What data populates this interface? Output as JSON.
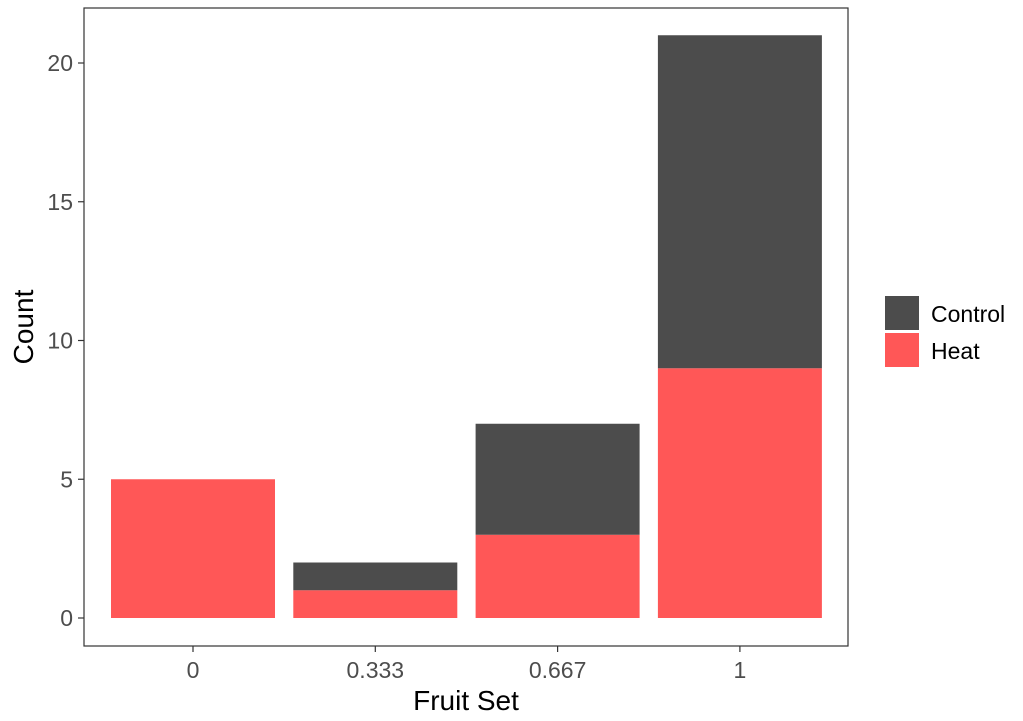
{
  "chart_data": {
    "type": "bar",
    "stacked": true,
    "categories": [
      "0",
      "0.333",
      "0.667",
      "1"
    ],
    "series": [
      {
        "name": "Control",
        "values": [
          0,
          1,
          4,
          12
        ],
        "color": "#333333",
        "opacity": 0.88
      },
      {
        "name": "Heat",
        "values": [
          5,
          1,
          3,
          9
        ],
        "color": "#ff4040",
        "opacity": 0.88
      }
    ],
    "totals": [
      5,
      2,
      7,
      21
    ],
    "xlabel": "Fruit Set",
    "ylabel": "Count",
    "ylim": [
      0,
      22
    ],
    "yticks": [
      0,
      5,
      10,
      15,
      20
    ],
    "grid": false,
    "legend": {
      "position": "right",
      "entries": [
        "Control",
        "Heat"
      ]
    }
  }
}
